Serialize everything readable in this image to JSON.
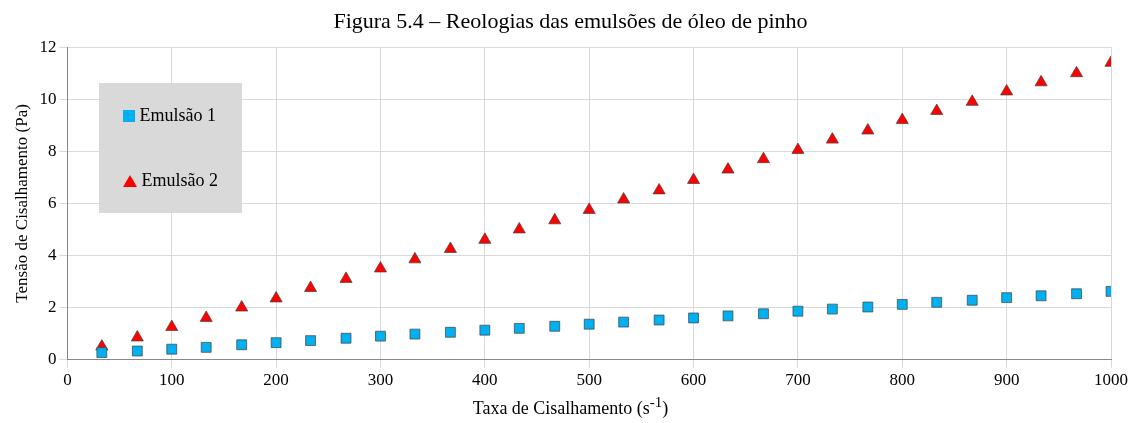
{
  "chart_data": {
    "type": "scatter",
    "title": "Figura 5.4 – Reologias das emulsões de óleo de pinho",
    "xlabel": "Taxa de Cisalhamento (s$^{-1}$)",
    "ylabel": "Tensão de Cisalhamento (Pa)",
    "x": [
      33,
      67,
      100,
      133,
      167,
      200,
      233,
      267,
      300,
      333,
      367,
      400,
      433,
      467,
      500,
      533,
      567,
      600,
      633,
      667,
      700,
      733,
      767,
      800,
      833,
      867,
      900,
      933,
      967,
      1000
    ],
    "series": [
      {
        "name": "Emulsão 1",
        "color": "#00b0f0",
        "marker": "square",
        "values": [
          0.27,
          0.33,
          0.4,
          0.47,
          0.57,
          0.65,
          0.73,
          0.82,
          0.9,
          0.98,
          1.05,
          1.13,
          1.2,
          1.28,
          1.36,
          1.44,
          1.52,
          1.6,
          1.68,
          1.76,
          1.86,
          1.94,
          2.02,
          2.12,
          2.2,
          2.28,
          2.38,
          2.45,
          2.53,
          2.62
        ]
      },
      {
        "name": "Emulsão 2",
        "color": "#ff0000",
        "marker": "triangle",
        "values": [
          0.5,
          0.85,
          1.25,
          1.6,
          2.0,
          2.35,
          2.75,
          3.1,
          3.5,
          3.85,
          4.25,
          4.6,
          5.0,
          5.35,
          5.75,
          6.15,
          6.5,
          6.9,
          7.3,
          7.7,
          8.05,
          8.45,
          8.8,
          9.2,
          9.55,
          9.9,
          10.3,
          10.65,
          11.0,
          11.4
        ]
      }
    ],
    "xlim": [
      0,
      1000
    ],
    "xticks": [
      0,
      100,
      200,
      300,
      400,
      500,
      600,
      700,
      800,
      900,
      1000
    ],
    "ylim": [
      0,
      12
    ],
    "yticks": [
      0,
      2,
      4,
      6,
      8,
      10,
      12
    ],
    "grid": true,
    "legend": "top left"
  }
}
